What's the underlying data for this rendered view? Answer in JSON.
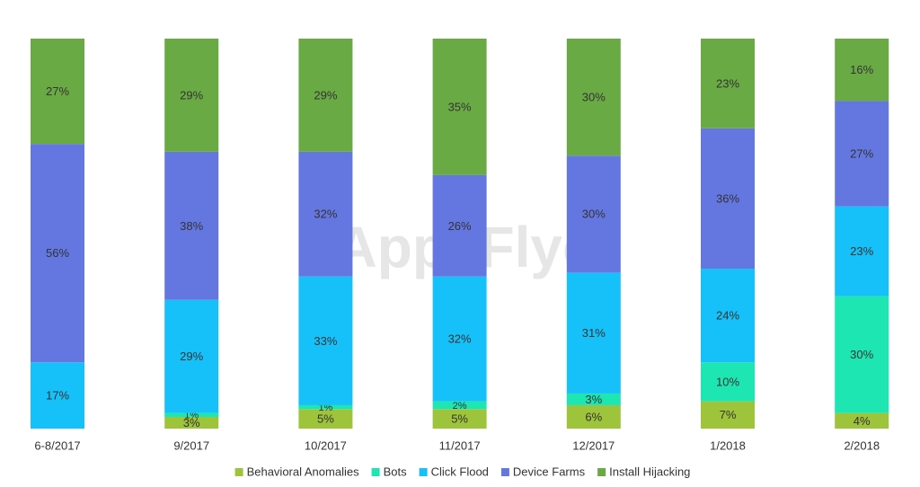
{
  "chart_data": {
    "type": "stacked_bar",
    "watermark": "AppsFlyer",
    "categories": [
      "6-8/2017",
      "9/2017",
      "10/2017",
      "11/2017",
      "12/2017",
      "1/2018",
      "2/2018"
    ],
    "ylim": [
      0,
      100
    ],
    "series": [
      {
        "name": "Behavioral Anomalies",
        "color": "#9ec43b",
        "values": [
          null,
          3,
          5,
          5,
          6,
          7,
          4
        ],
        "value_labels": [
          null,
          "3%",
          "5%",
          "5%",
          "6%",
          "7%",
          "4%"
        ]
      },
      {
        "name": "Bots",
        "color": "#1de6b3",
        "values": [
          null,
          1,
          1,
          2,
          3,
          10,
          30
        ],
        "value_labels": [
          null,
          "1%",
          "1%",
          "2%",
          "3%",
          "10%",
          "30%"
        ]
      },
      {
        "name": "Click Flood",
        "color": "#16c0f8",
        "values": [
          17,
          29,
          33,
          32,
          31,
          24,
          23
        ],
        "value_labels": [
          "17%",
          "29%",
          "33%",
          "32%",
          "31%",
          "24%",
          "23%"
        ]
      },
      {
        "name": "Device Farms",
        "color": "#6477e0",
        "values": [
          56,
          38,
          32,
          26,
          30,
          36,
          27
        ],
        "value_labels": [
          "56%",
          "38%",
          "32%",
          "26%",
          "30%",
          "36%",
          "27%"
        ]
      },
      {
        "name": "Install Hijacking",
        "color": "#6aaa45",
        "values": [
          27,
          29,
          29,
          35,
          30,
          23,
          16
        ],
        "value_labels": [
          "27%",
          "29%",
          "29%",
          "35%",
          "30%",
          "23%",
          "16%"
        ]
      }
    ]
  }
}
